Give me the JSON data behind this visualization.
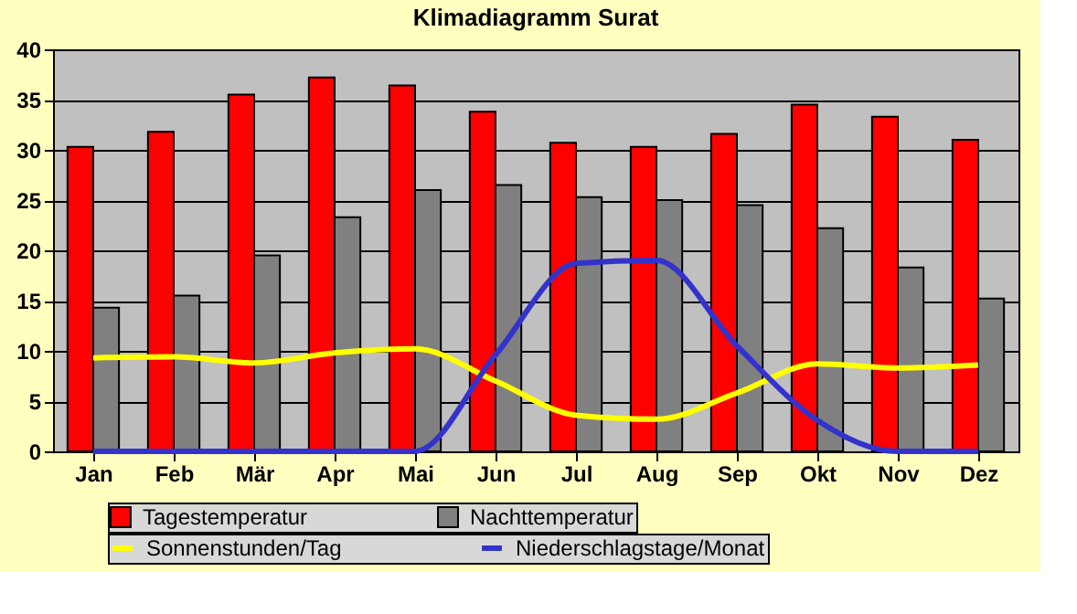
{
  "chart_data": {
    "type": "bar",
    "title": "Klimadiagramm Surat",
    "categories": [
      "Jan",
      "Feb",
      "Mär",
      "Apr",
      "Mai",
      "Jun",
      "Jul",
      "Aug",
      "Sep",
      "Okt",
      "Nov",
      "Dez"
    ],
    "series": [
      {
        "name": "Tagestemperatur",
        "color": "#ff0000",
        "values": [
          30.3,
          31.8,
          35.5,
          37.2,
          36.4,
          33.8,
          30.7,
          30.3,
          31.6,
          34.5,
          33.3,
          31.0
        ]
      },
      {
        "name": "Nachttemperatur",
        "color": "#808080",
        "values": [
          14.3,
          15.5,
          19.5,
          23.3,
          26.0,
          26.5,
          25.3,
          25.0,
          24.5,
          22.2,
          18.3,
          15.2
        ]
      },
      {
        "name": "Sonnenstunden/Tag",
        "type": "line",
        "color": "#ffff00",
        "values": [
          9.3,
          9.4,
          8.8,
          9.8,
          10.2,
          7.0,
          3.6,
          3.2,
          5.8,
          8.7,
          8.3,
          8.6
        ]
      },
      {
        "name": "Niederschlagstage/Monat",
        "type": "line",
        "color": "#3333cc",
        "values": [
          0,
          0,
          0,
          0,
          0,
          9.6,
          18.7,
          19.0,
          10.5,
          3.1,
          0,
          0
        ]
      }
    ],
    "ylim": [
      0,
      40
    ],
    "yticks": [
      0,
      5,
      10,
      15,
      20,
      25,
      30,
      35,
      40
    ],
    "grid": "y",
    "legend": "bottom",
    "marker": "none",
    "line_style": "solid"
  }
}
